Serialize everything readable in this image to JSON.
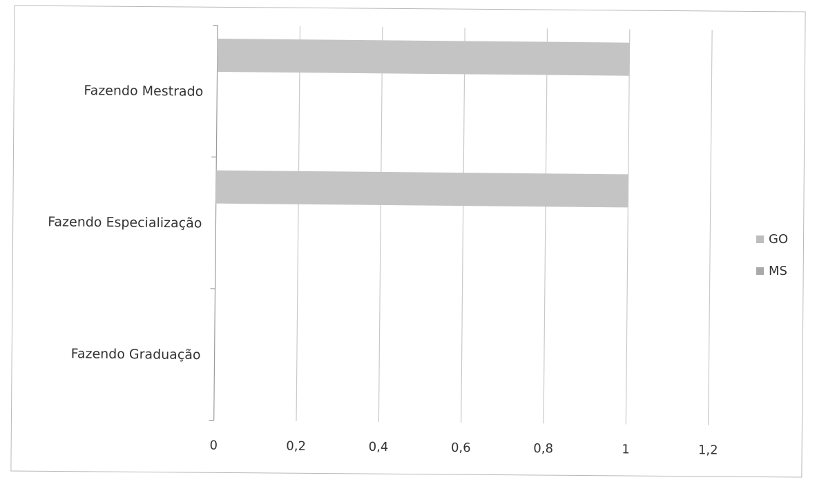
{
  "chart_data": {
    "type": "bar",
    "orientation": "horizontal",
    "categories": [
      "Fazendo Graduação",
      "Fazendo Especialização",
      "Fazendo Mestrado"
    ],
    "series": [
      {
        "name": "GO",
        "values": [
          0,
          1,
          1
        ]
      },
      {
        "name": "MS",
        "values": [
          0,
          0,
          0
        ]
      }
    ],
    "xlim": [
      0,
      1.2
    ],
    "xticks": [
      "0",
      "0,2",
      "0,4",
      "0,6",
      "0,8",
      "1",
      "1,2"
    ],
    "grid": true,
    "legend_position": "right",
    "colors": {
      "bar": "#c4c4c4",
      "grid": "#c9c9c9",
      "axis": "#9a9a9a",
      "text": "#333333"
    }
  }
}
